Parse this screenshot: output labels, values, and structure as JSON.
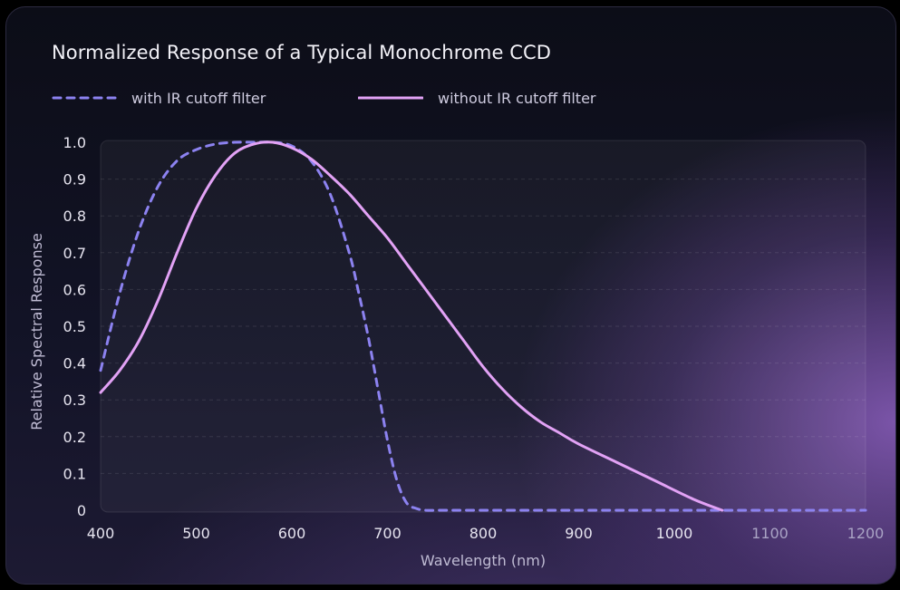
{
  "chart_data": {
    "type": "line",
    "title": "Normalized Response of a Typical Monochrome CCD",
    "xlabel": "Wavelength (nm)",
    "ylabel": "Relative Spectral Response",
    "xlim": [
      400,
      1200
    ],
    "ylim": [
      0,
      1.0
    ],
    "x_ticks": [
      "400",
      "500",
      "600",
      "700",
      "800",
      "900",
      "1000",
      "1100",
      "1200"
    ],
    "y_ticks": [
      "0",
      "0.1",
      "0.2",
      "0.3",
      "0.4",
      "0.5",
      "0.6",
      "0.7",
      "0.8",
      "0.9",
      "1.0"
    ],
    "grid": true,
    "legend_position": "top",
    "series": [
      {
        "name": "with IR cutoff filter",
        "style": "dashed",
        "color": "#8c82f0",
        "x": [
          400,
          420,
          440,
          460,
          480,
          500,
          520,
          540,
          560,
          580,
          600,
          620,
          640,
          660,
          670,
          680,
          690,
          700,
          710,
          720,
          730,
          740,
          760,
          800,
          900,
          1000,
          1100,
          1200
        ],
        "y": [
          0.38,
          0.59,
          0.76,
          0.88,
          0.95,
          0.98,
          0.995,
          1.0,
          1.0,
          1.0,
          0.99,
          0.95,
          0.86,
          0.7,
          0.59,
          0.47,
          0.33,
          0.19,
          0.08,
          0.02,
          0.005,
          0.0,
          0.0,
          0.0,
          0.0,
          0.0,
          0.0,
          0.0
        ]
      },
      {
        "name": "without IR cutoff filter",
        "style": "solid",
        "color": "#e2a2f5",
        "x": [
          400,
          420,
          440,
          460,
          480,
          500,
          520,
          540,
          560,
          580,
          600,
          620,
          640,
          660,
          680,
          700,
          720,
          740,
          760,
          780,
          800,
          820,
          840,
          860,
          880,
          900,
          940,
          980,
          1020,
          1050
        ],
        "y": [
          0.32,
          0.38,
          0.46,
          0.57,
          0.7,
          0.82,
          0.91,
          0.97,
          0.995,
          1.0,
          0.985,
          0.955,
          0.91,
          0.86,
          0.8,
          0.74,
          0.67,
          0.6,
          0.53,
          0.46,
          0.39,
          0.33,
          0.28,
          0.24,
          0.21,
          0.18,
          0.13,
          0.08,
          0.03,
          0.0
        ]
      }
    ]
  }
}
